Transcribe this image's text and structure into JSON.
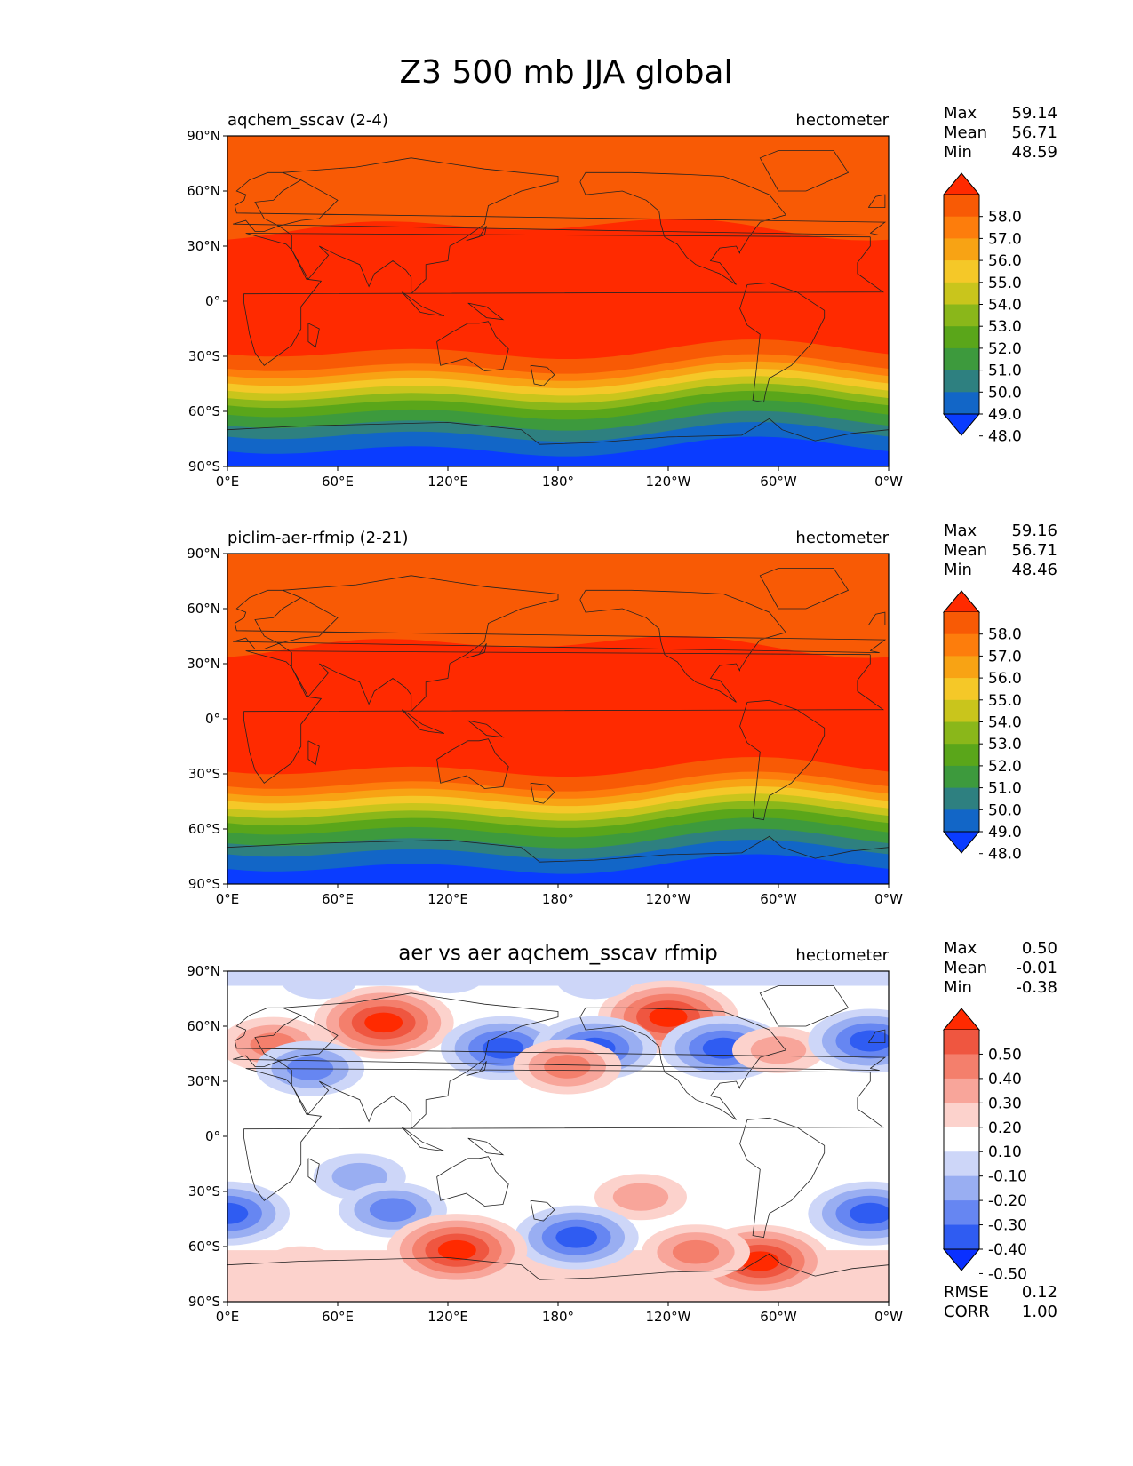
{
  "title": "Z3 500 mb JJA global",
  "axes": {
    "lat_ticks": [
      "90°N",
      "60°N",
      "30°N",
      "0°",
      "30°S",
      "60°S",
      "90°S"
    ],
    "lon_ticks": [
      "0°E",
      "60°E",
      "120°E",
      "180°",
      "120°W",
      "60°W",
      "0°W"
    ]
  },
  "chart_data": [
    {
      "type": "heatmap",
      "title": "aqchem_sscav (2-4)",
      "units": "hectometer",
      "colormap": "sequential",
      "stats": [
        {
          "label": "Max",
          "value": "59.14"
        },
        {
          "label": "Mean",
          "value": "56.71"
        },
        {
          "label": "Min",
          "value": "48.59"
        }
      ],
      "colorbar": {
        "levels": [
          48.0,
          49.0,
          50.0,
          51.0,
          52.0,
          53.0,
          54.0,
          55.0,
          56.0,
          57.0,
          58.0
        ],
        "labels": [
          "58.0",
          "57.0",
          "56.0",
          "55.0",
          "54.0",
          "53.0",
          "52.0",
          "51.0",
          "50.0",
          "49.0",
          "48.0"
        ],
        "colors": [
          "#0a3cff",
          "#1266c7",
          "#2e8080",
          "#3d9a3d",
          "#5aa61a",
          "#8ab71a",
          "#c9c51c",
          "#f5c828",
          "#f8a314",
          "#fd7d0c",
          "#f85a05",
          "#ff2a00"
        ]
      }
    },
    {
      "type": "heatmap",
      "title": "piclim-aer-rfmip (2-21)",
      "units": "hectometer",
      "colormap": "sequential",
      "stats": [
        {
          "label": "Max",
          "value": "59.16"
        },
        {
          "label": "Mean",
          "value": "56.71"
        },
        {
          "label": "Min",
          "value": "48.46"
        }
      ],
      "colorbar": {
        "levels": [
          48.0,
          49.0,
          50.0,
          51.0,
          52.0,
          53.0,
          54.0,
          55.0,
          56.0,
          57.0,
          58.0
        ],
        "labels": [
          "58.0",
          "57.0",
          "56.0",
          "55.0",
          "54.0",
          "53.0",
          "52.0",
          "51.0",
          "50.0",
          "49.0",
          "48.0"
        ],
        "colors": [
          "#0a3cff",
          "#1266c7",
          "#2e8080",
          "#3d9a3d",
          "#5aa61a",
          "#8ab71a",
          "#c9c51c",
          "#f5c828",
          "#f8a314",
          "#fd7d0c",
          "#f85a05",
          "#ff2a00"
        ]
      }
    },
    {
      "type": "heatmap",
      "title": "aer vs aer aqchem_sscav rfmip",
      "units": "hectometer",
      "colormap": "diverging",
      "stats": [
        {
          "label": "Max",
          "value": "0.50"
        },
        {
          "label": "Mean",
          "value": "-0.01"
        },
        {
          "label": "Min",
          "value": "-0.38"
        }
      ],
      "extra_stats": [
        {
          "label": "RMSE",
          "value": "0.12"
        },
        {
          "label": "CORR",
          "value": "1.00"
        }
      ],
      "colorbar": {
        "levels": [
          -0.5,
          -0.4,
          -0.3,
          -0.2,
          -0.1,
          0.1,
          0.2,
          0.3,
          0.4,
          0.5
        ],
        "labels": [
          "0.50",
          "0.40",
          "0.30",
          "0.20",
          "0.10",
          "-0.10",
          "-0.20",
          "-0.30",
          "-0.40",
          "-0.50"
        ],
        "colors": [
          "#0a30ff",
          "#2f5cf2",
          "#6686f2",
          "#99aef2",
          "#cdd6f8",
          "#ffffff",
          "#fcd2cc",
          "#f8a59a",
          "#f47f6c",
          "#ef5640",
          "#ff2a00"
        ]
      },
      "anomalies": [
        {
          "lon": 85,
          "lat": 62,
          "value": 0.45
        },
        {
          "lon": 240,
          "lat": 65,
          "value": 0.5
        },
        {
          "lon": 25,
          "lat": 50,
          "value": 0.35
        },
        {
          "lon": 45,
          "lat": 37,
          "value": -0.3
        },
        {
          "lon": 150,
          "lat": 48,
          "value": -0.4
        },
        {
          "lon": 200,
          "lat": 48,
          "value": -0.4
        },
        {
          "lon": 270,
          "lat": 48,
          "value": -0.4
        },
        {
          "lon": 300,
          "lat": 47,
          "value": 0.2
        },
        {
          "lon": 350,
          "lat": 52,
          "value": -0.4
        },
        {
          "lon": 185,
          "lat": 38,
          "value": 0.25
        },
        {
          "lon": 72,
          "lat": -22,
          "value": -0.2
        },
        {
          "lon": 90,
          "lat": -40,
          "value": -0.35
        },
        {
          "lon": 0,
          "lat": -42,
          "value": -0.4
        },
        {
          "lon": 350,
          "lat": -42,
          "value": -0.4
        },
        {
          "lon": 225,
          "lat": -33,
          "value": 0.2
        },
        {
          "lon": 190,
          "lat": -55,
          "value": -0.4
        },
        {
          "lon": 125,
          "lat": -62,
          "value": 0.45
        },
        {
          "lon": 290,
          "lat": -68,
          "value": 0.45
        },
        {
          "lon": 255,
          "lat": -63,
          "value": 0.3
        },
        {
          "lon": 40,
          "lat": -70,
          "value": 0.15
        },
        {
          "lon": 200,
          "lat": 85,
          "value": -0.15
        },
        {
          "lon": 50,
          "lat": 85,
          "value": -0.15
        },
        {
          "lon": 120,
          "lat": 88,
          "value": -0.15
        }
      ]
    }
  ]
}
